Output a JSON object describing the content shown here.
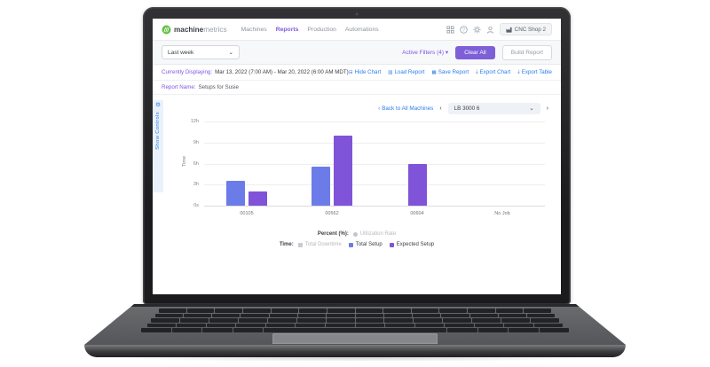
{
  "header": {
    "logo": {
      "brand_bold": "machine",
      "brand_light": "metrics"
    },
    "nav": [
      {
        "label": "Machines",
        "active": false
      },
      {
        "label": "Reports",
        "active": true
      },
      {
        "label": "Production",
        "active": false
      },
      {
        "label": "Automations",
        "active": false
      }
    ],
    "icon_names": [
      "apps-grid-icon",
      "help-icon",
      "gear-icon",
      "user-icon"
    ],
    "shop_button": {
      "label": "CNC Shop 2"
    }
  },
  "filter_bar": {
    "date_range_select": {
      "value": "Last week"
    },
    "active_filters_label": "Active Filters (4)",
    "clear_all_label": "Clear All",
    "build_report_label": "Build Report"
  },
  "status_row": {
    "currently_displaying_label": "Currently Displaying:",
    "currently_displaying_value": "Mar 13, 2022 (7:00 AM) - Mar 20, 2022 (6:00 AM MDT)",
    "links": [
      {
        "label": "Hide Chart",
        "icon": "hide-chart-icon",
        "glyph": "⊟"
      },
      {
        "label": "Load Report",
        "icon": "load-report-icon",
        "glyph": "▥"
      },
      {
        "label": "Save Report",
        "icon": "save-report-icon",
        "glyph": "▦"
      },
      {
        "label": "Export Chart",
        "icon": "export-chart-icon",
        "glyph": "⤓"
      },
      {
        "label": "Export Table",
        "icon": "export-table-icon",
        "glyph": "⤓"
      }
    ]
  },
  "report_row": {
    "label": "Report Name:",
    "value": "Setups for Susie"
  },
  "controls_tab": {
    "label": "Show Controls"
  },
  "machine_nav": {
    "back_label": "Back to All Machines",
    "machine_select": {
      "value": "LB 3000 6"
    }
  },
  "glyphs": {
    "caret_down": "▾",
    "chevron_down": "⌄",
    "chevron_left": "‹",
    "chevron_right": "›",
    "gear": "⚙"
  },
  "chart_data": {
    "type": "bar",
    "title": "",
    "xlabel": "",
    "ylabel": "Time",
    "ylim_hours": [
      0,
      12
    ],
    "yticks": [
      "12h",
      "9h",
      "6h",
      "3h",
      "0s"
    ],
    "categories": [
      "00105",
      "00562",
      "00604",
      "No Job"
    ],
    "series": [
      {
        "name": "Total Setup",
        "color": "#6b7ce8",
        "values_hours": [
          3.5,
          5.5,
          0,
          0
        ]
      },
      {
        "name": "Expected Setup",
        "color": "#7f54d8",
        "values_hours": [
          2.0,
          10.0,
          6.0,
          0
        ]
      }
    ],
    "grid": true,
    "legend_position": "bottom"
  },
  "legend": {
    "percent_label": "Percent (%):",
    "percent_items": [
      {
        "label": "Utilization Rate",
        "disabled": true
      }
    ],
    "time_label": "Time:",
    "time_items": [
      {
        "label": "Total Downtime",
        "color": "#c6cad1",
        "disabled": true
      },
      {
        "label": "Total Setup",
        "color": "#6b7ce8",
        "disabled": false
      },
      {
        "label": "Expected Setup",
        "color": "#7f54d8",
        "disabled": false
      }
    ]
  },
  "colors": {
    "accent_purple": "#7e57e0",
    "button_purple": "#7d5fd8",
    "link_blue": "#2b7de9",
    "bar_blue": "#6b7ce8",
    "bar_purple": "#7f54d8",
    "logo_green": "#5fbf3f"
  }
}
